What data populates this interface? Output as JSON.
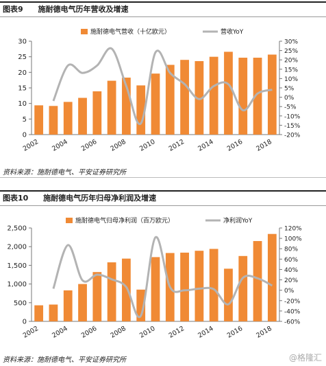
{
  "figure1": {
    "number": "图表9",
    "title": "施耐德电气历年营收及增速",
    "source": "资料来源：施耐德电气、平安证券研究所"
  },
  "figure2": {
    "number": "图表10",
    "title": "施耐德电气历年归母净利润及增速",
    "source": "资料来源：施耐德电气、平安证券研究所"
  },
  "watermark": "@格隆汇",
  "colors": {
    "bar": "#F08A35",
    "line": "#B3B3B3",
    "axis": "#777777",
    "text": "#222222"
  },
  "chart_data": [
    {
      "type": "bar",
      "x": [
        2002,
        2003,
        2004,
        2005,
        2006,
        2007,
        2008,
        2009,
        2010,
        2011,
        2012,
        2013,
        2014,
        2015,
        2016,
        2017,
        2018
      ],
      "xticks": [
        2002,
        2004,
        2006,
        2008,
        2010,
        2012,
        2014,
        2016,
        2018
      ],
      "legend_position": "top",
      "series": [
        {
          "name": "施耐德电气营收（十亿欧元）",
          "type": "bar",
          "axis": "left",
          "values": [
            9.4,
            9.2,
            10.5,
            11.8,
            13.9,
            17.3,
            18.3,
            15.8,
            19.6,
            22.4,
            24.0,
            23.6,
            25.0,
            26.6,
            24.7,
            24.7,
            25.7
          ]
        },
        {
          "name": "营收YoY",
          "type": "line",
          "axis": "right",
          "unit": "%",
          "values": [
            null,
            -2,
            17,
            13,
            17,
            26,
            6,
            -14,
            24,
            13,
            7,
            -1,
            6,
            7,
            -7,
            2,
            4
          ]
        }
      ],
      "yleft": {
        "min": 0,
        "max": 30,
        "ticks": [
          0,
          5,
          10,
          15,
          20,
          25,
          30
        ]
      },
      "yright": {
        "min": -20,
        "max": 30,
        "ticks": [
          -20,
          -15,
          -10,
          -5,
          0,
          5,
          10,
          15,
          20,
          25,
          30
        ],
        "format": "%"
      }
    },
    {
      "type": "bar",
      "x": [
        2002,
        2003,
        2004,
        2005,
        2006,
        2007,
        2008,
        2009,
        2010,
        2011,
        2012,
        2013,
        2014,
        2015,
        2016,
        2017,
        2018
      ],
      "xticks": [
        2002,
        2004,
        2006,
        2008,
        2010,
        2012,
        2014,
        2016,
        2018
      ],
      "legend_position": "top",
      "series": [
        {
          "name": "施耐德电气归母净利润（百万欧元）",
          "type": "bar",
          "axis": "left",
          "values": [
            430,
            450,
            830,
            1000,
            1320,
            1580,
            1680,
            850,
            1720,
            1830,
            1840,
            1890,
            1940,
            1410,
            1750,
            2150,
            2340
          ]
        },
        {
          "name": "净利润YoY",
          "type": "line",
          "axis": "right",
          "unit": "%",
          "values": [
            null,
            3,
            87,
            19,
            30,
            21,
            6,
            -49,
            102,
            6,
            0,
            3,
            2,
            -27,
            24,
            23,
            9
          ]
        }
      ],
      "yleft": {
        "min": 0,
        "max": 2500,
        "ticks": [
          0,
          500,
          1000,
          1500,
          2000,
          2500
        ],
        "format": "comma"
      },
      "yright": {
        "min": -60,
        "max": 120,
        "ticks": [
          -60,
          -40,
          -20,
          0,
          20,
          40,
          60,
          80,
          100,
          120
        ],
        "format": "%"
      }
    }
  ]
}
